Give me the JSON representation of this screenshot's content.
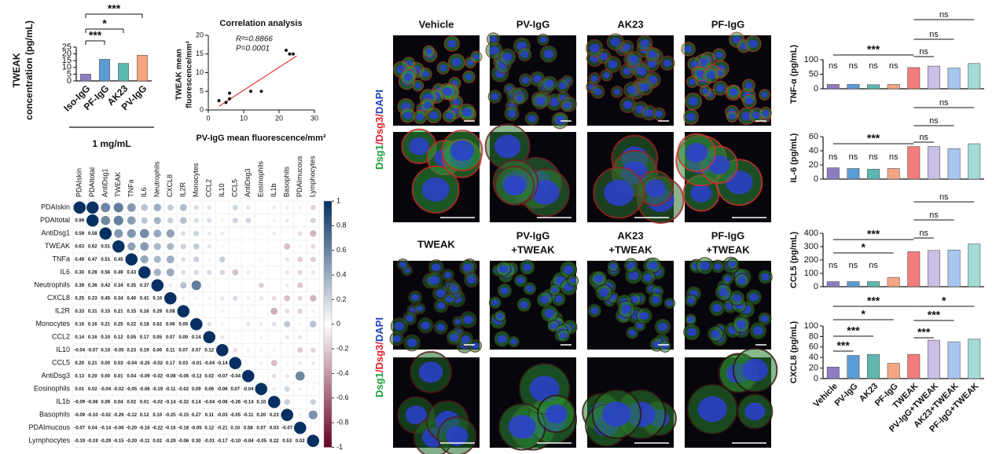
{
  "chart_data": [
    {
      "type": "bar",
      "ylabel": [
        "TWEAK",
        "concentration (pg/mL)"
      ],
      "categories": [
        "Iso-IgG",
        "PF-IgG",
        "AK23",
        "PV-IgG"
      ],
      "values": [
        5,
        16,
        13,
        19
      ],
      "colors": [
        "#8e7cc3",
        "#5b9bd5",
        "#5fb8b0",
        "#f4a582"
      ],
      "ylim": [
        0,
        25
      ],
      "yticks": [
        0,
        5,
        10,
        15,
        20,
        25
      ],
      "significance": [
        "***",
        "*",
        "***"
      ],
      "xlabel": "1 mg/mL"
    },
    {
      "type": "scatter",
      "title": "Correlation analysis",
      "xlabel": "PV-IgG mean fluorescence/mm²",
      "ylabel": [
        "TWEAK mean",
        "fluorescence/mm²"
      ],
      "annotations": [
        "R²=0.8866",
        "P=0.0001"
      ],
      "x": [
        3,
        5,
        6,
        6,
        12,
        15,
        22,
        23,
        24
      ],
      "y": [
        2.5,
        2,
        3,
        4.5,
        5,
        5,
        16,
        15,
        15
      ],
      "color": "#111111",
      "fit": {
        "x": [
          3,
          25
        ],
        "y": [
          1,
          14.5
        ],
        "color": "#e8403a"
      },
      "xlim": [
        0,
        30
      ],
      "xticks": [
        0,
        10,
        20,
        30
      ],
      "ylim": [
        0,
        20
      ],
      "yticks": [
        0,
        5,
        10,
        15,
        20
      ]
    },
    {
      "type": "heatmap",
      "labels": [
        "PDAIskin",
        "PDAItotal",
        "AntiDsg1",
        "TWEAK",
        "TNFa",
        "IL6",
        "Neutrophils",
        "CXCL8",
        "IL2R",
        "Monocytes",
        "CCL2",
        "IL10",
        "CCL5",
        "AntiDsg3",
        "Eosinophils",
        "IL1b",
        "Basophils",
        "PDAImucous",
        "Lymphocytes"
      ],
      "matrix": [
        [
          1
        ],
        [
          0.99,
          1
        ],
        [
          0.59,
          0.58,
          1
        ],
        [
          0.63,
          0.62,
          0.51,
          1
        ],
        [
          0.49,
          0.47,
          0.51,
          0.45,
          1
        ],
        [
          0.3,
          0.28,
          0.56,
          0.49,
          0.43,
          1
        ],
        [
          0.39,
          0.36,
          0.42,
          0.34,
          0.35,
          0.37,
          1
        ],
        [
          0.25,
          0.23,
          0.45,
          0.34,
          0.4,
          0.41,
          0.1,
          1
        ],
        [
          0.33,
          0.31,
          0.15,
          0.21,
          0.15,
          0.16,
          0.29,
          0.08,
          1
        ],
        [
          0.16,
          0.16,
          0.21,
          0.25,
          0.22,
          0.18,
          0.62,
          0.06,
          0.05,
          1
        ],
        [
          0.14,
          0.16,
          0.1,
          0.12,
          0.05,
          0.17,
          0.05,
          0.07,
          0,
          0.14,
          1
        ],
        [
          -0.04,
          -0.07,
          0.1,
          -0.05,
          0.23,
          0.19,
          0,
          0.11,
          0.07,
          0.07,
          0.12,
          1
        ],
        [
          0.2,
          0.21,
          0,
          0.03,
          -0.04,
          -0.25,
          -0.02,
          0.17,
          0.03,
          -0.01,
          -0.04,
          -0.14,
          1
        ],
        [
          0.13,
          0.2,
          0,
          0.01,
          0.04,
          -0.09,
          -0.02,
          -0.08,
          -0.06,
          -0.12,
          0.02,
          -0.07,
          -0.04,
          1
        ],
        [
          0.01,
          0.02,
          -0.04,
          -0.02,
          -0.05,
          -0.06,
          -0.19,
          -0.11,
          -0.02,
          0.09,
          0.06,
          -0.06,
          0.07,
          -0.04,
          1
        ],
        [
          -0.09,
          -0.08,
          0.09,
          0.04,
          0.02,
          0.01,
          -0.02,
          -0.14,
          -0.32,
          0.14,
          -0.04,
          -0.06,
          -0.26,
          -0.14,
          0.1,
          1
        ],
        [
          -0.09,
          -0.1,
          -0.02,
          -0.26,
          -0.12,
          0.12,
          0.1,
          -0.25,
          -0.15,
          0.27,
          0.11,
          -0.03,
          -0.05,
          -0.11,
          0.2,
          0.23,
          1
        ],
        [
          -0.07,
          0.04,
          -0.14,
          -0.06,
          -0.2,
          -0.16,
          -0.22,
          -0.16,
          -0.18,
          -0.05,
          0.12,
          -0.21,
          0.1,
          0.58,
          0.07,
          0.03,
          -0.07,
          1
        ],
        [
          -0.19,
          -0.19,
          -0.29,
          -0.15,
          -0.2,
          -0.11,
          0.02,
          -0.29,
          -0.06,
          0.3,
          -0.01,
          -0.17,
          -0.1,
          -0.04,
          -0.05,
          0.22,
          0.53,
          0.02,
          1
        ]
      ],
      "value_labels": [
        [],
        [
          "0.99"
        ],
        [
          "0.59",
          "0.58"
        ],
        [
          "0.63",
          "0.62",
          "0.51"
        ],
        [
          "0.49",
          "0.47",
          "0.51",
          "0.45"
        ],
        [
          "0.30",
          "0.28",
          "0.56",
          "0.49",
          "0.43"
        ],
        [
          "0.39",
          "0.36",
          "0.42",
          "0.34",
          "0.35",
          "0.37"
        ],
        [
          "0.25",
          "0.23",
          "0.45",
          "0.34",
          "0.40",
          "0.41",
          "0.10"
        ],
        [
          "0.33",
          "0.31",
          "0.15",
          "0.21",
          "0.15",
          "0.16",
          "0.29",
          "0.08"
        ],
        [
          "0.16",
          "0.16",
          "0.21",
          "0.25",
          "0.22",
          "0.18",
          "0.62",
          "0.06",
          "0.05"
        ],
        [
          "0.14",
          "0.16",
          "0.10",
          "0.12",
          "0.05",
          "0.17",
          "0.05",
          "0.07",
          "0.00",
          "0.14"
        ],
        [
          "-0.04",
          "-0.07",
          "0.10",
          "-0.05",
          "0.23",
          "0.19",
          "0.00",
          "0.11",
          "0.07",
          "0.07",
          "0.12"
        ],
        [
          "0.20",
          "0.21",
          "0.00",
          "0.03",
          "-0.04",
          "-0.25",
          "-0.02",
          "0.17",
          "0.03",
          "-0.01",
          "-0.04",
          "-0.14"
        ],
        [
          "0.13",
          "0.20",
          "0.00",
          "0.01",
          "0.04",
          "-0.09",
          "-0.02",
          "-0.08",
          "-0.06",
          "-0.12",
          "0.02",
          "-0.07",
          "-0.04"
        ],
        [
          "0.01",
          "0.02",
          "-0.04",
          "-0.02",
          "-0.05",
          "-0.06",
          "-0.19",
          "-0.11",
          "-0.02",
          "0.09",
          "0.06",
          "-0.06",
          "0.07",
          "-0.04"
        ],
        [
          "-0.09",
          "-0.08",
          "0.09",
          "0.04",
          "0.02",
          "0.01",
          "-0.02",
          "-0.14",
          "-0.32",
          "0.14",
          "-0.04",
          "-0.06",
          "-0.26",
          "-0.14",
          "0.10"
        ],
        [
          "-0.09",
          "-0.10",
          "-0.02",
          "-0.26",
          "-0.12",
          "0.12",
          "0.10",
          "-0.25",
          "-0.15",
          "0.27",
          "0.11",
          "-0.03",
          "-0.05",
          "-0.11",
          "0.20",
          "0.23"
        ],
        [
          "-0.07",
          "0.04",
          "-0.14",
          "-0.06",
          "-0.20",
          "-0.16",
          "-0.22",
          "-0.16",
          "-0.18",
          "-0.05",
          "0.12",
          "-0.21",
          "0.10",
          "0.58",
          "0.07",
          "0.03",
          "-0.07"
        ],
        [
          "-0.19",
          "-0.19",
          "-0.29",
          "-0.15",
          "-0.20",
          "-0.11",
          "0.02",
          "-0.29",
          "-0.06",
          "0.30",
          "-0.01",
          "-0.17",
          "-0.10",
          "-0.04",
          "-0.05",
          "0.22",
          "0.53",
          "0.02"
        ]
      ],
      "colors": [
        "#67001f",
        "#ffffff",
        "#053061"
      ],
      "zlim": [
        -1,
        1
      ],
      "zticks": [
        1,
        0.8,
        0.6,
        0.4,
        0.2,
        0,
        -0.2,
        -0.4,
        -0.6,
        -0.8,
        -1
      ]
    },
    {
      "type": "bar",
      "ylabel": "TNF-α (pg/mL)",
      "values": [
        15,
        15,
        14,
        15,
        73,
        78,
        71,
        87
      ],
      "colors": [
        "#8e7cc3",
        "#5b9bd5",
        "#5fb8b0",
        "#f4a582",
        "#f47c7c",
        "#cbbfe6",
        "#a7c7ee",
        "#a3dbd6"
      ],
      "ylim": [
        0,
        100
      ],
      "yticks": [
        0,
        50,
        100
      ],
      "significance": [
        "ns",
        "ns",
        "ns",
        "ns",
        "***",
        "ns",
        "ns",
        "ns"
      ]
    },
    {
      "type": "bar",
      "ylabel": "IL-6 (pg/mL)",
      "values": [
        16,
        15,
        14,
        15,
        46,
        46,
        43,
        50
      ],
      "colors": [
        "#8e7cc3",
        "#5b9bd5",
        "#5fb8b0",
        "#f4a582",
        "#f47c7c",
        "#cbbfe6",
        "#a7c7ee",
        "#a3dbd6"
      ],
      "ylim": [
        0,
        60
      ],
      "yticks": [
        0,
        20,
        40,
        60
      ],
      "significance": [
        "ns",
        "ns",
        "ns",
        "ns",
        "***",
        "ns",
        "ns",
        "ns"
      ]
    },
    {
      "type": "bar",
      "ylabel": "CCL5 (pg/mL)",
      "values": [
        38,
        38,
        38,
        70,
        262,
        272,
        275,
        320
      ],
      "colors": [
        "#8e7cc3",
        "#5b9bd5",
        "#5fb8b0",
        "#f4a582",
        "#f47c7c",
        "#cbbfe6",
        "#a7c7ee",
        "#a3dbd6"
      ],
      "ylim": [
        0,
        400
      ],
      "yticks": [
        0,
        100,
        200,
        300,
        400
      ],
      "significance": [
        "ns",
        "ns",
        "ns",
        "*",
        "***",
        "ns",
        "ns",
        "ns"
      ]
    },
    {
      "type": "bar",
      "ylabel": "CXCL8 (pg/mL)",
      "categories": [
        "Vehicle",
        "PV-IgG",
        "AK23",
        "PF-IgG",
        "TWEAK",
        "PV-IgG+TWEAK",
        "AK23+TWEAK",
        "PF-IgG+TWEAK"
      ],
      "values": [
        22,
        44,
        46,
        29,
        46,
        73,
        70,
        75
      ],
      "colors": [
        "#8e7cc3",
        "#5b9bd5",
        "#5fb8b0",
        "#f4a582",
        "#f47c7c",
        "#cbbfe6",
        "#a7c7ee",
        "#a3dbd6"
      ],
      "ylim": [
        0,
        100
      ],
      "yticks": [
        0,
        20,
        40,
        60,
        80,
        100
      ],
      "significance": [
        "***",
        "***",
        "*",
        "***",
        "***",
        "***",
        "*"
      ]
    }
  ],
  "images": {
    "top_labels": [
      "Vehicle",
      "PV-IgG",
      "AK23",
      "PF-IgG"
    ],
    "bottom_labels": [
      [
        "TWEAK"
      ],
      [
        "PV-IgG",
        "+TWEAK"
      ],
      [
        "AK23",
        "+TWEAK"
      ],
      [
        "PF-IgG",
        "+TWEAK"
      ]
    ],
    "stain": [
      "Dsg1",
      "/Dsg3/",
      "DAPI"
    ],
    "stain_colors": [
      "#1a9e3a",
      "#e0202a",
      "#1f3fbf"
    ]
  }
}
